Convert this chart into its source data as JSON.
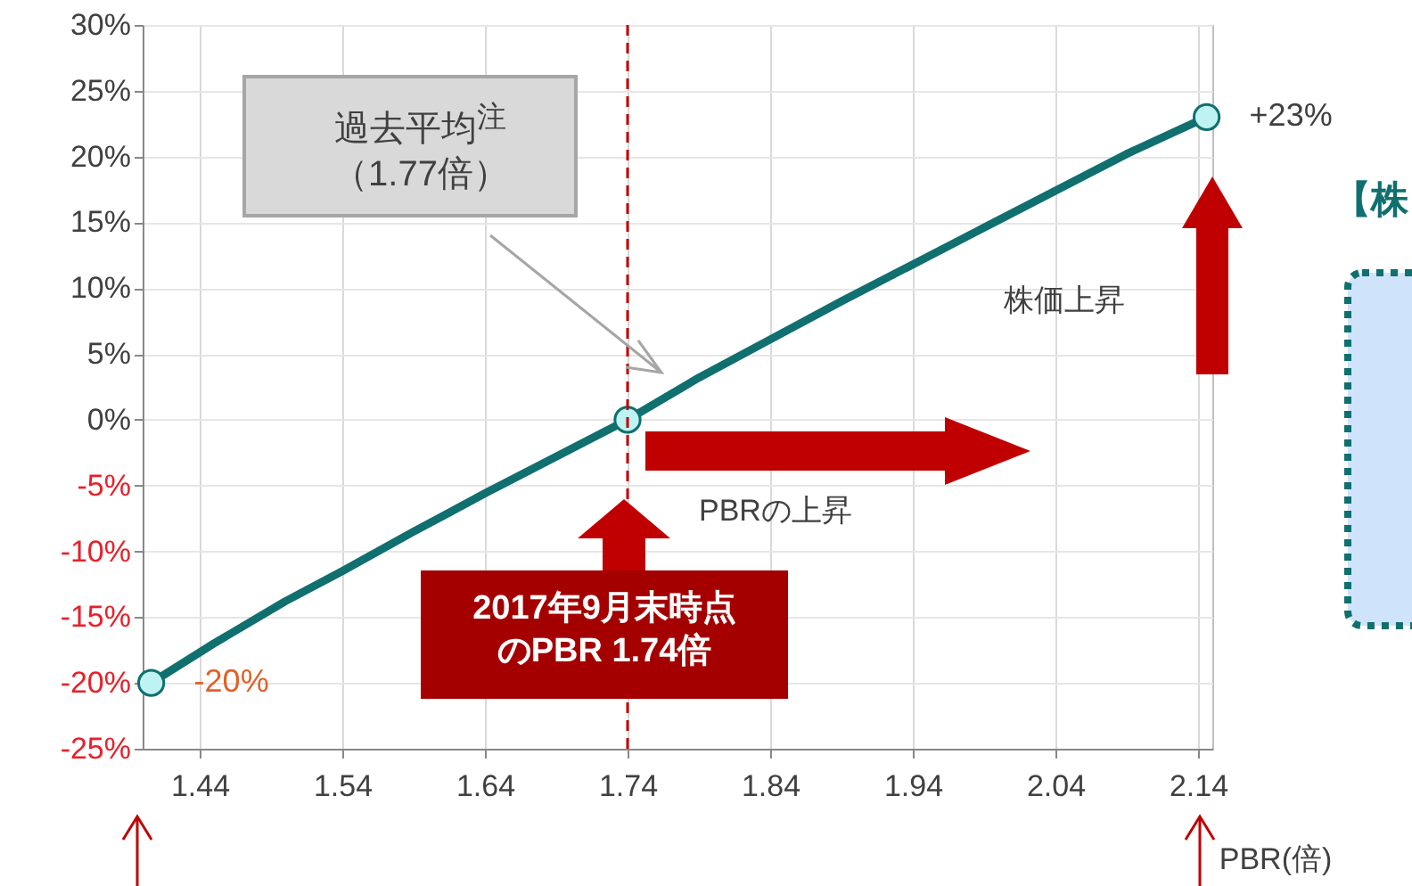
{
  "chart_data": {
    "type": "line",
    "xlabel": "PBR(倍)",
    "xlim": [
      1.4,
      2.15
    ],
    "xticks": [
      1.44,
      1.54,
      1.64,
      1.74,
      1.84,
      1.94,
      2.04,
      2.14
    ],
    "ylim": [
      -25,
      30
    ],
    "yticks": [
      {
        "value": -25,
        "label": "-25%"
      },
      {
        "value": -20,
        "label": "-20%"
      },
      {
        "value": -15,
        "label": "-15%"
      },
      {
        "value": -10,
        "label": "-10%"
      },
      {
        "value": -5,
        "label": "-5%"
      },
      {
        "value": 0,
        "label": "0%"
      },
      {
        "value": 5,
        "label": "5%"
      },
      {
        "value": 10,
        "label": "10%"
      },
      {
        "value": 15,
        "label": "15%"
      },
      {
        "value": 20,
        "label": "20%"
      },
      {
        "value": 25,
        "label": "25%"
      },
      {
        "value": 30,
        "label": "30%"
      }
    ],
    "grid": true,
    "series": [
      {
        "color": "#106f6f",
        "x": [
          1.406,
          1.45,
          1.5,
          1.54,
          1.59,
          1.64,
          1.69,
          1.74,
          1.79,
          1.84,
          1.89,
          1.94,
          1.99,
          2.04,
          2.09,
          2.146
        ],
        "values": [
          -20,
          -17,
          -13.8,
          -11.5,
          -8.5,
          -5.6,
          -2.8,
          0,
          3.2,
          6.1,
          9.0,
          11.8,
          14.6,
          17.4,
          20.2,
          23
        ]
      },
      {
        "type": "scatter",
        "color": "#bff2f2",
        "x": [
          1.406,
          1.74,
          2.146
        ],
        "values": [
          -20,
          0,
          23
        ],
        "value_labels": [
          "-20%",
          null,
          "+23%"
        ]
      }
    ],
    "ref_lines": [
      {
        "axis": "x",
        "value": 1.74,
        "color": "#c00000",
        "line_style": "dashed"
      }
    ],
    "annotations": [
      "過去平均$^{注}$（1.77倍）",
      "株価上昇",
      "PBRの上昇",
      "2017年9月末時点のPBR 1.74倍",
      "【株"
    ]
  }
}
